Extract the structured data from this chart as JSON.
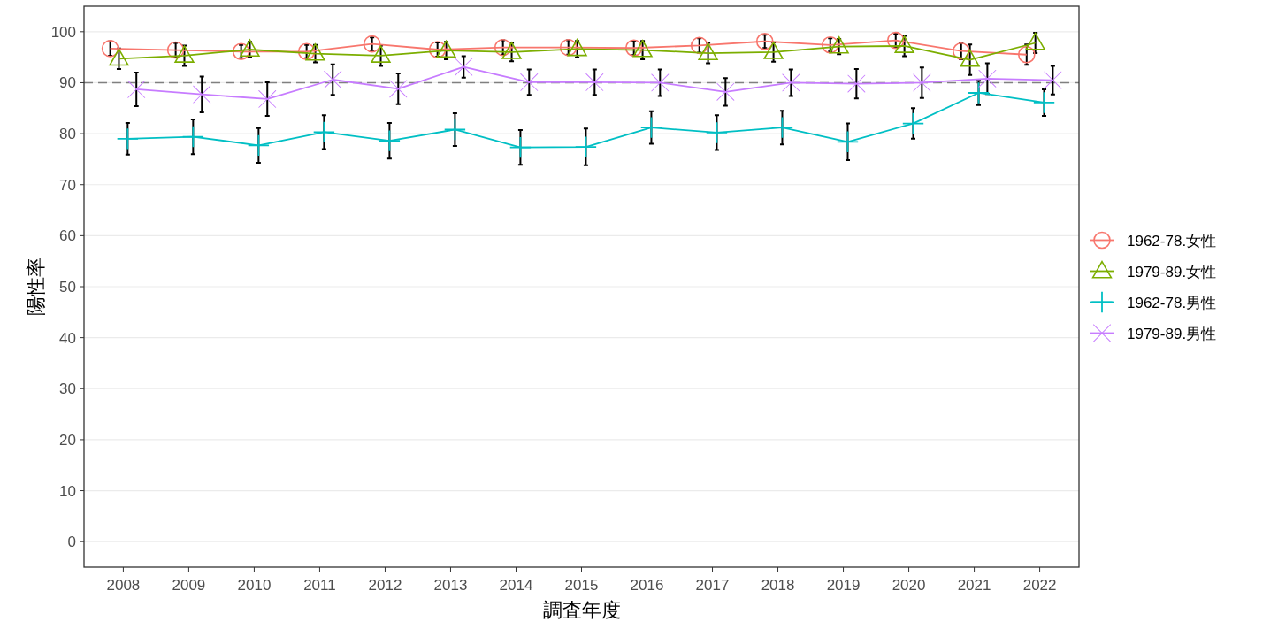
{
  "chart_data": {
    "type": "line",
    "xlabel": "調査年度",
    "ylabel": "陽性率",
    "categories": [
      "2008",
      "2009",
      "2010",
      "2011",
      "2012",
      "2013",
      "2014",
      "2015",
      "2016",
      "2017",
      "2018",
      "2019",
      "2020",
      "2021",
      "2022"
    ],
    "ylim": [
      -5,
      105
    ],
    "yticks": [
      0,
      10,
      20,
      30,
      40,
      50,
      60,
      70,
      80,
      90,
      100
    ],
    "grid": "y",
    "legend": "right",
    "ref_lines": [
      {
        "axis": "y",
        "value": 90,
        "color": "#808080",
        "line_style": "dashed"
      }
    ],
    "series": [
      {
        "name": "1962-78.女性",
        "color": "#F8766D",
        "marker": "circle",
        "values": [
          96.7,
          96.4,
          96.1,
          96.1,
          97.6,
          96.5,
          96.9,
          96.9,
          96.8,
          97.3,
          98.1,
          97.4,
          98.3,
          96.2,
          95.5
        ],
        "errors": [
          1.4,
          1.4,
          1.3,
          1.3,
          1.3,
          1.4,
          1.4,
          1.4,
          1.4,
          1.4,
          1.3,
          1.3,
          1.3,
          1.6,
          2.0
        ]
      },
      {
        "name": "1979-89.女性",
        "color": "#7CAE00",
        "marker": "triangle",
        "values": [
          94.7,
          95.3,
          96.5,
          95.7,
          95.3,
          96.3,
          96.0,
          96.6,
          96.4,
          95.8,
          96.0,
          97.1,
          97.2,
          94.5,
          97.8
        ],
        "errors": [
          2.0,
          2.0,
          1.5,
          1.7,
          2.0,
          1.7,
          1.8,
          1.6,
          1.8,
          2.0,
          1.9,
          1.5,
          2.0,
          3.0,
          2.0
        ]
      },
      {
        "name": "1962-78.男性",
        "color": "#00BFC4",
        "marker": "cross",
        "values": [
          79.0,
          79.4,
          77.7,
          80.3,
          78.6,
          80.8,
          77.3,
          77.4,
          81.2,
          80.2,
          81.2,
          78.4,
          82.0,
          88.0,
          86.1
        ],
        "errors": [
          3.1,
          3.4,
          3.4,
          3.3,
          3.5,
          3.2,
          3.4,
          3.6,
          3.2,
          3.4,
          3.3,
          3.6,
          3.0,
          2.4,
          2.6
        ]
      },
      {
        "name": "1979-89.男性",
        "color": "#C77CFF",
        "marker": "star",
        "values": [
          88.7,
          87.7,
          86.8,
          90.6,
          88.8,
          93.1,
          90.1,
          90.1,
          90.0,
          88.2,
          90.0,
          89.8,
          90.0,
          90.8,
          90.5
        ],
        "errors": [
          3.3,
          3.5,
          3.3,
          3.0,
          3.0,
          2.1,
          2.5,
          2.5,
          2.6,
          2.7,
          2.6,
          2.9,
          3.0,
          3.0,
          2.8
        ]
      }
    ]
  }
}
